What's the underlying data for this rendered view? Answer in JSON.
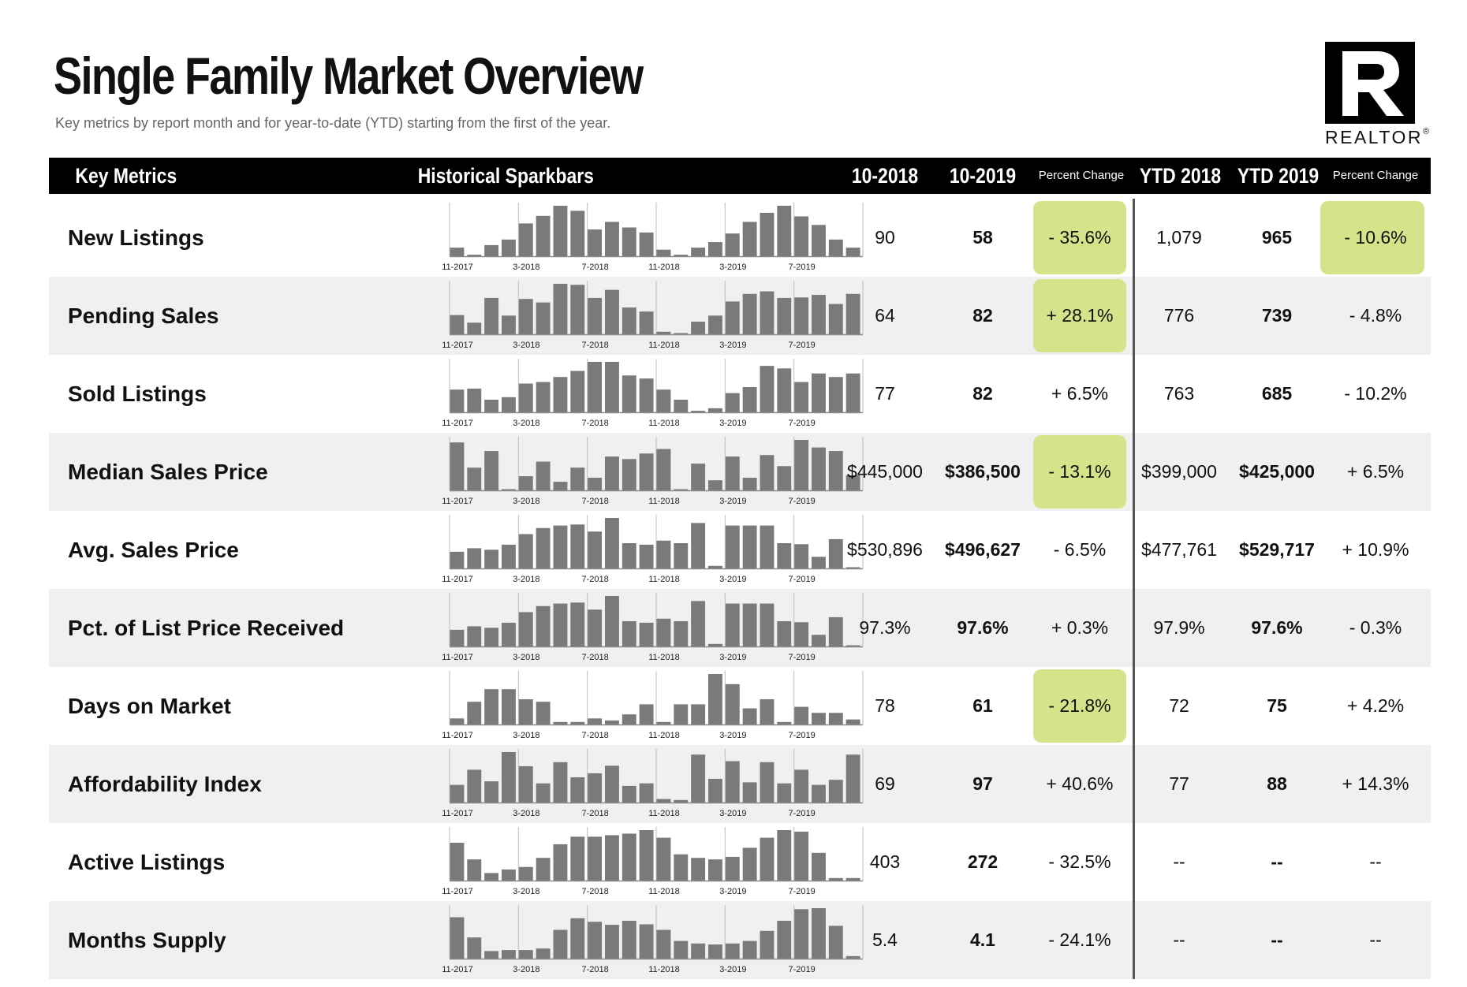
{
  "header": {
    "title": "Single Family Market Overview",
    "subtitle": "Key metrics by report month and for year-to-date (YTD) starting from the first of the year.",
    "logo_text": "REALTOR",
    "logo_mark": "®"
  },
  "columns": {
    "metric": "Key Metrics",
    "sparkbars": "Historical Sparkbars",
    "m2018": "10-2018",
    "m2019": "10-2019",
    "pct": "Percent Change",
    "ytd2018": "YTD 2018",
    "ytd2019": "YTD 2019",
    "ytd_pct": "Percent Change"
  },
  "spark_labels": [
    "11-2017",
    "3-2018",
    "7-2018",
    "11-2018",
    "3-2019",
    "7-2019"
  ],
  "highlight_color": "#d4e48a",
  "bar_color": "#7a7a7a",
  "rows": [
    {
      "metric": "New Listings",
      "m2018": "90",
      "m2019": "58",
      "pct": "- 35.6%",
      "ytd2018": "1,079",
      "ytd2019": "965",
      "ytd_pct": "- 10.6%",
      "pct_hl": true,
      "ytd_hl": true,
      "bars": [
        0.17,
        0.03,
        0.22,
        0.33,
        0.65,
        0.8,
        1.0,
        0.9,
        0.53,
        0.68,
        0.57,
        0.47,
        0.13,
        0.03,
        0.17,
        0.28,
        0.45,
        0.68,
        0.86,
        1.0,
        0.79,
        0.62,
        0.33,
        0.17
      ]
    },
    {
      "metric": "Pending Sales",
      "m2018": "64",
      "m2019": "82",
      "pct": "+ 28.1%",
      "ytd2018": "776",
      "ytd2019": "739",
      "ytd_pct": "- 4.8%",
      "pct_hl": true,
      "ytd_hl": false,
      "bars": [
        0.38,
        0.23,
        0.72,
        0.37,
        0.7,
        0.63,
        1.0,
        0.98,
        0.72,
        0.88,
        0.53,
        0.45,
        0.05,
        0.02,
        0.25,
        0.37,
        0.65,
        0.8,
        0.85,
        0.72,
        0.73,
        0.78,
        0.6,
        0.8
      ]
    },
    {
      "metric": "Sold Listings",
      "m2018": "77",
      "m2019": "82",
      "pct": "+ 6.5%",
      "ytd2018": "763",
      "ytd2019": "685",
      "ytd_pct": "- 10.2%",
      "pct_hl": false,
      "ytd_hl": false,
      "bars": [
        0.45,
        0.47,
        0.25,
        0.3,
        0.57,
        0.6,
        0.7,
        0.82,
        1.0,
        1.0,
        0.73,
        0.67,
        0.45,
        0.25,
        0.03,
        0.08,
        0.38,
        0.5,
        0.92,
        0.87,
        0.6,
        0.77,
        0.7,
        0.77
      ]
    },
    {
      "metric": "Median Sales Price",
      "m2018": "$445,000",
      "m2019": "$386,500",
      "pct": "- 13.1%",
      "ytd2018": "$399,000",
      "ytd2019": "$425,000",
      "ytd_pct": "+ 6.5%",
      "pct_hl": true,
      "ytd_hl": false,
      "bars": [
        0.95,
        0.45,
        0.78,
        0.02,
        0.28,
        0.57,
        0.17,
        0.45,
        0.25,
        0.67,
        0.62,
        0.73,
        0.82,
        0.02,
        0.53,
        0.2,
        0.67,
        0.25,
        0.7,
        0.48,
        1.0,
        0.85,
        0.78,
        0.3
      ]
    },
    {
      "metric": "Avg. Sales Price",
      "m2018": "$530,896",
      "m2019": "$496,627",
      "pct": "- 6.5%",
      "ytd2018": "$477,761",
      "ytd2019": "$529,717",
      "ytd_pct": "+ 10.9%",
      "pct_hl": false,
      "ytd_hl": false,
      "bars": [
        0.33,
        0.4,
        0.37,
        0.47,
        0.68,
        0.8,
        0.85,
        0.87,
        0.73,
        1.0,
        0.5,
        0.47,
        0.55,
        0.5,
        0.9,
        0.05,
        0.85,
        0.85,
        0.85,
        0.5,
        0.48,
        0.23,
        0.58,
        0.0
      ]
    },
    {
      "metric": "Pct. of List Price Received",
      "m2018": "97.3%",
      "m2019": "97.6%",
      "pct": "+ 0.3%",
      "ytd2018": "97.9%",
      "ytd2019": "97.6%",
      "ytd_pct": "- 0.3%",
      "pct_hl": false,
      "ytd_hl": false,
      "bars": [
        0.33,
        0.4,
        0.37,
        0.47,
        0.68,
        0.8,
        0.85,
        0.87,
        0.73,
        1.0,
        0.5,
        0.47,
        0.55,
        0.5,
        0.9,
        0.05,
        0.85,
        0.85,
        0.85,
        0.5,
        0.48,
        0.23,
        0.58,
        0.0
      ]
    },
    {
      "metric": "Days on Market",
      "m2018": "78",
      "m2019": "61",
      "pct": "- 21.8%",
      "ytd2018": "72",
      "ytd2019": "75",
      "ytd_pct": "+ 4.2%",
      "pct_hl": true,
      "ytd_hl": false,
      "bars": [
        0.12,
        0.45,
        0.7,
        0.7,
        0.5,
        0.45,
        0.05,
        0.05,
        0.12,
        0.08,
        0.2,
        0.4,
        0.05,
        0.4,
        0.4,
        1.0,
        0.8,
        0.32,
        0.5,
        0.05,
        0.35,
        0.23,
        0.23,
        0.1
      ]
    },
    {
      "metric": "Affordability Index",
      "m2018": "69",
      "m2019": "97",
      "pct": "+ 40.6%",
      "ytd2018": "77",
      "ytd2019": "88",
      "ytd_pct": "+ 14.3%",
      "pct_hl": false,
      "ytd_hl": false,
      "bars": [
        0.35,
        0.65,
        0.42,
        1.0,
        0.72,
        0.38,
        0.8,
        0.5,
        0.58,
        0.73,
        0.33,
        0.38,
        0.07,
        0.05,
        0.95,
        0.47,
        0.82,
        0.4,
        0.8,
        0.38,
        0.65,
        0.35,
        0.45,
        0.95
      ]
    },
    {
      "metric": "Active Listings",
      "m2018": "403",
      "m2019": "272",
      "pct": "- 32.5%",
      "ytd2018": "--",
      "ytd2019": "--",
      "ytd_pct": "--",
      "pct_hl": false,
      "ytd_hl": false,
      "bars": [
        0.75,
        0.42,
        0.15,
        0.22,
        0.27,
        0.45,
        0.72,
        0.87,
        0.87,
        0.9,
        0.93,
        1.0,
        0.85,
        0.52,
        0.45,
        0.42,
        0.47,
        0.65,
        0.85,
        1.0,
        0.97,
        0.55,
        0.05,
        0.05
      ]
    },
    {
      "metric": "Months Supply",
      "m2018": "5.4",
      "m2019": "4.1",
      "pct": "- 24.1%",
      "ytd2018": "--",
      "ytd2019": "--",
      "ytd_pct": "--",
      "pct_hl": false,
      "ytd_hl": false,
      "bars": [
        0.82,
        0.42,
        0.15,
        0.17,
        0.17,
        0.2,
        0.57,
        0.8,
        0.73,
        0.67,
        0.75,
        0.68,
        0.57,
        0.35,
        0.3,
        0.28,
        0.3,
        0.35,
        0.55,
        0.75,
        0.98,
        1.0,
        0.65,
        0.05
      ]
    }
  ]
}
